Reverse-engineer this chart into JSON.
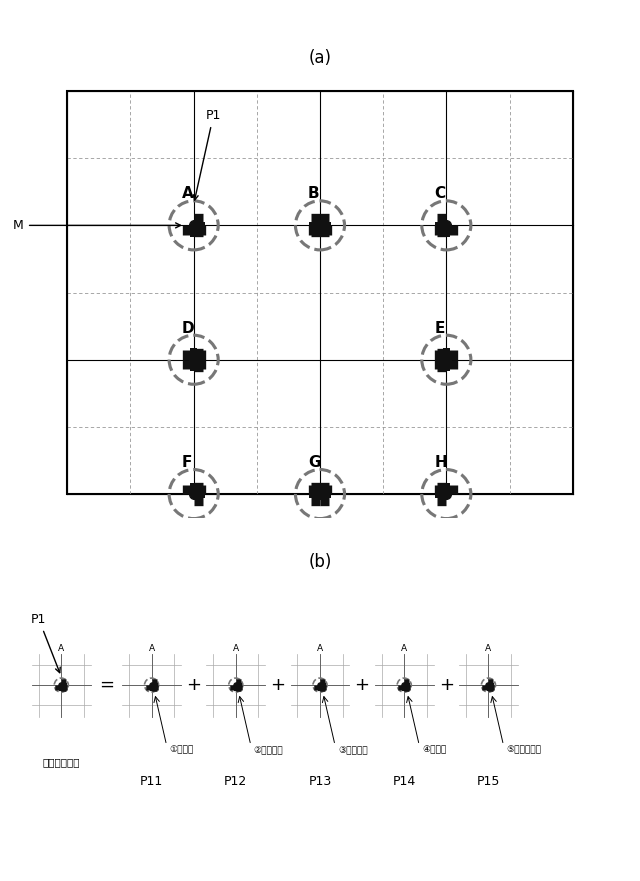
{
  "title_a": "(a)",
  "title_b": "(b)",
  "bg_color": "#ffffff",
  "part_labels": [
    "①平面図",
    "②基瞐伏図",
    "③土台伏図",
    "④床伏図",
    "⑤スタッド図"
  ],
  "part_ids": [
    "P11",
    "P12",
    "P13",
    "P14",
    "P15"
  ],
  "wall_part_label": "「壁パーツ」"
}
